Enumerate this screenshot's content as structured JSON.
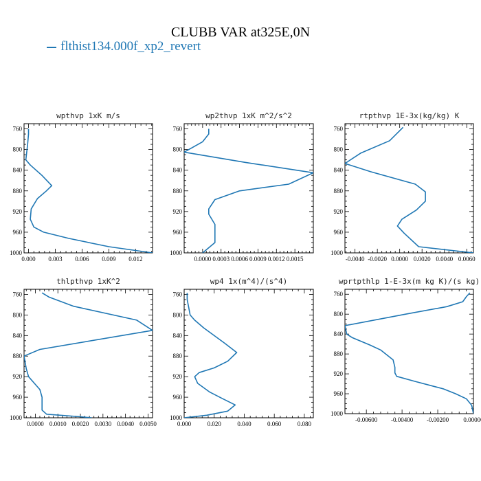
{
  "figure": {
    "title": "CLUBB VAR at325E,0N",
    "legend": "flthist134.000f_xp2_revert",
    "line_color": "#1f77b4"
  },
  "chart_data": [
    {
      "type": "line",
      "title": "wpthvp  1xK m/s",
      "xlim": [
        -0.0005,
        0.0139
      ],
      "ylim": [
        1000,
        750
      ],
      "xticks": [
        0.0,
        0.003,
        0.006,
        0.009,
        0.012
      ],
      "xtick_labels": [
        "0.000",
        "0.003",
        "0.006",
        "0.009",
        "0.012"
      ],
      "yticks": [
        760,
        800,
        840,
        880,
        920,
        960,
        1000
      ],
      "ytick_labels": [
        "760",
        "800",
        "840",
        "880",
        "920",
        "960",
        "1000"
      ],
      "series": [
        {
          "x": [
            0.0,
            0.0,
            -0.0001,
            -0.0003,
            0.0002,
            0.0015,
            0.0026,
            0.002,
            0.001,
            0.0003,
            0.0002,
            0.0006,
            0.0017,
            0.0045,
            0.009,
            0.0139
          ],
          "y": [
            760,
            770,
            790,
            820,
            830,
            850,
            870,
            880,
            895,
            915,
            935,
            950,
            960,
            972,
            988,
            1000
          ]
        }
      ]
    },
    {
      "type": "line",
      "title": "wp2thvp  1xK m^2/s^2",
      "xlim": [
        -0.0003,
        0.0018
      ],
      "ylim": [
        1000,
        750
      ],
      "xticks": [
        0.0,
        0.0003,
        0.0006,
        0.0009,
        0.0012,
        0.0015
      ],
      "xtick_labels": [
        "0.0000",
        "0.0003",
        "0.0006",
        "0.0009",
        "0.0012",
        "0.0015"
      ],
      "yticks": [
        760,
        800,
        840,
        880,
        920,
        960,
        1000
      ],
      "ytick_labels": [
        "760",
        "800",
        "840",
        "880",
        "920",
        "960",
        "1000"
      ],
      "series": [
        {
          "x": [
            0.0001,
            0.0001,
            0.0,
            -0.0003,
            0.0007,
            0.0018,
            0.0014,
            0.0006,
            0.0002,
            0.0001,
            0.0001,
            0.0002,
            0.0002,
            0.0002,
            0.0
          ],
          "y": [
            760,
            770,
            785,
            805,
            825,
            845,
            867,
            880,
            897,
            915,
            925,
            945,
            960,
            980,
            1000
          ]
        }
      ]
    },
    {
      "type": "line",
      "title": "rtpthvp  1E-3x(kg/kg) K",
      "xlim": [
        -0.0049,
        0.0066
      ],
      "ylim": [
        1000,
        750
      ],
      "xticks": [
        -0.004,
        -0.002,
        0.0,
        0.002,
        0.004,
        0.006
      ],
      "xtick_labels": [
        "-0.0040",
        "-0.0020",
        "0.0000",
        "0.0020",
        "0.0040",
        "0.0060"
      ],
      "yticks": [
        760,
        800,
        840,
        880,
        920,
        960,
        1000
      ],
      "ytick_labels": [
        "760",
        "800",
        "840",
        "880",
        "920",
        "960",
        "1000"
      ],
      "series": [
        {
          "x": [
            0.0003,
            -0.0009,
            -0.0035,
            -0.0049,
            -0.0026,
            0.0014,
            0.0023,
            0.0023,
            0.0015,
            0.0002,
            -0.0002,
            0.0004,
            0.0017,
            0.0066
          ],
          "y": [
            757,
            783,
            807,
            827,
            843,
            867,
            882,
            900,
            917,
            935,
            948,
            962,
            988,
            1000
          ]
        }
      ]
    },
    {
      "type": "line",
      "title": "thlpthvp  1xK^2",
      "xlim": [
        -0.0005,
        0.0052
      ],
      "ylim": [
        1000,
        750
      ],
      "xticks": [
        0.0,
        0.001,
        0.002,
        0.003,
        0.004,
        0.005
      ],
      "xtick_labels": [
        "0.0000",
        "0.0010",
        "0.0020",
        "0.0030",
        "0.0040",
        "0.0050"
      ],
      "yticks": [
        760,
        800,
        840,
        880,
        920,
        960,
        1000
      ],
      "ytick_labels": [
        "760",
        "800",
        "840",
        "880",
        "920",
        "960",
        "1000"
      ],
      "series": [
        {
          "x": [
            0.0003,
            0.0006,
            0.0017,
            0.0045,
            0.0052,
            0.0002,
            -0.0005,
            -0.0004,
            -0.0003,
            0.0,
            0.0002,
            0.0003,
            0.0003,
            0.0003,
            0.0005,
            0.002,
            0.0025
          ],
          "y": [
            757,
            765,
            783,
            810,
            830,
            867,
            880,
            905,
            920,
            935,
            945,
            960,
            975,
            985,
            993,
            998,
            1000
          ]
        }
      ]
    },
    {
      "type": "line",
      "title": "wp4  1x(m^4)/(s^4)",
      "xlim": [
        0.0,
        0.086
      ],
      "ylim": [
        1000,
        750
      ],
      "xticks": [
        0.0,
        0.02,
        0.04,
        0.06,
        0.08
      ],
      "xtick_labels": [
        "0.000",
        "0.020",
        "0.040",
        "0.060",
        "0.080"
      ],
      "yticks": [
        760,
        800,
        840,
        880,
        920,
        960,
        1000
      ],
      "ytick_labels": [
        "760",
        "800",
        "840",
        "880",
        "920",
        "960",
        "1000"
      ],
      "series": [
        {
          "x": [
            0.002,
            0.002,
            0.003,
            0.004,
            0.007,
            0.013,
            0.027,
            0.035,
            0.029,
            0.02,
            0.01,
            0.007,
            0.009,
            0.017,
            0.025,
            0.034,
            0.029,
            0.015,
            0.0
          ],
          "y": [
            757,
            770,
            785,
            800,
            810,
            825,
            855,
            873,
            890,
            903,
            912,
            920,
            933,
            950,
            962,
            975,
            987,
            995,
            1000
          ]
        }
      ]
    },
    {
      "type": "line",
      "title": "wprtpthlp  1-E-3x(m kg K)/(s kg)",
      "xlim": [
        -0.0072,
        0.0
      ],
      "ylim": [
        1000,
        750
      ],
      "xticks": [
        -0.006,
        -0.004,
        -0.002,
        0.0
      ],
      "xtick_labels": [
        "-0.00600",
        "-0.00400",
        "-0.00200",
        "0.00000"
      ],
      "yticks": [
        760,
        800,
        840,
        880,
        920,
        960,
        1000
      ],
      "ytick_labels": [
        "760",
        "800",
        "840",
        "880",
        "920",
        "960",
        "1000"
      ],
      "series": [
        {
          "x": [
            -0.0002,
            -0.0004,
            -0.0006,
            -0.0015,
            -0.0038,
            -0.0072,
            -0.0071,
            -0.0068,
            -0.0058,
            -0.0052,
            -0.0045,
            -0.0044,
            -0.0044,
            -0.0043,
            -0.0033,
            -0.0017,
            -0.001,
            -0.0004,
            -0.0001,
            0.0
          ],
          "y": [
            757,
            765,
            775,
            785,
            800,
            823,
            840,
            847,
            862,
            872,
            892,
            907,
            918,
            925,
            935,
            950,
            960,
            970,
            983,
            1000
          ]
        }
      ]
    }
  ]
}
